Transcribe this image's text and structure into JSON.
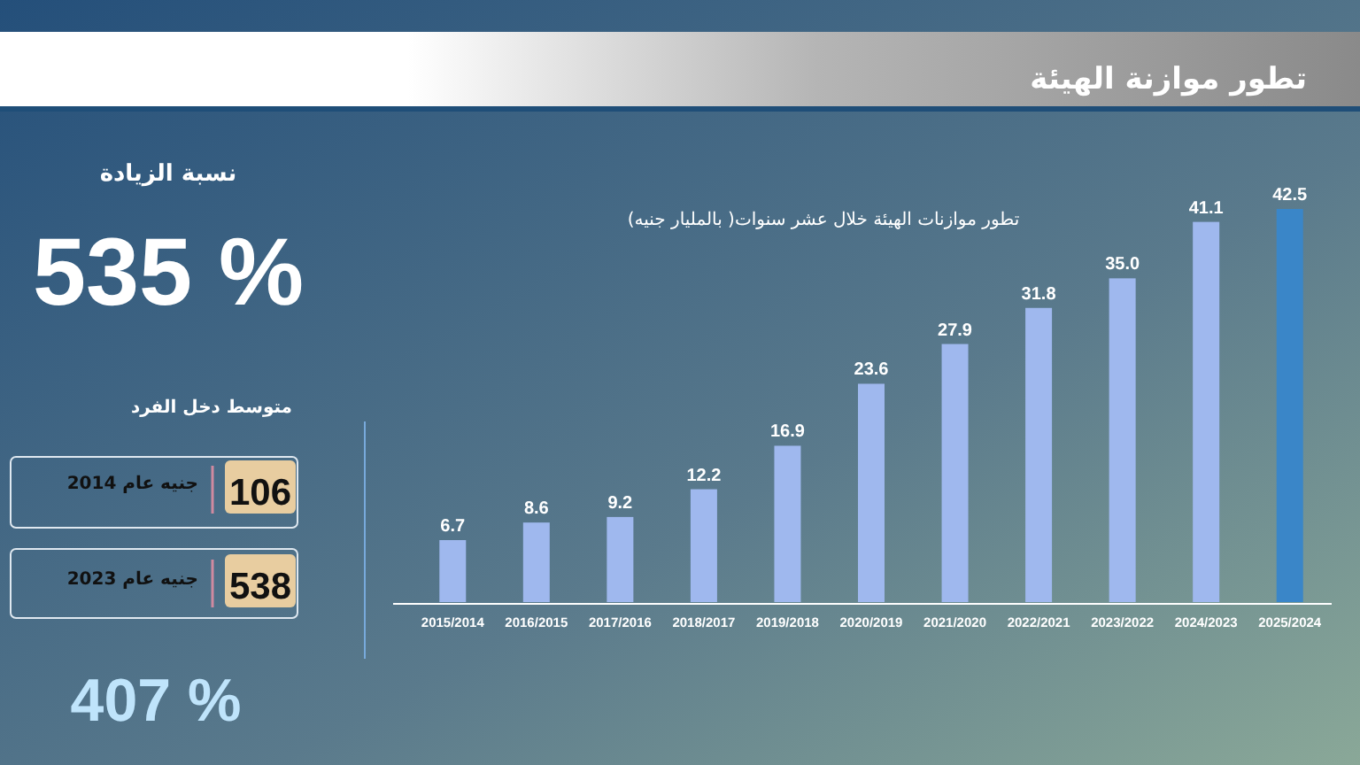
{
  "chart_data": {
    "type": "bar",
    "title": "تطور موازنة الهيئة",
    "subtitle": "تطور موازنات الهيئة خلال عشر سنوات( بالمليار جنيه)",
    "categories": [
      "2015/2014",
      "2016/2015",
      "2017/2016",
      "2018/2017",
      "2019/2018",
      "2020/2019",
      "2021/2020",
      "2022/2021",
      "2023/2022",
      "2024/2023",
      "2025/2024"
    ],
    "values": [
      6.7,
      8.6,
      9.2,
      12.2,
      16.9,
      23.6,
      27.9,
      31.8,
      35.0,
      41.1,
      42.5
    ],
    "value_labels": [
      "6.7",
      "8.6",
      "9.2",
      "12.2",
      "16.9",
      "23.6",
      "27.9",
      "31.8",
      "35.0",
      "41.1",
      "42.5"
    ],
    "colors": [
      "#9fb8ee",
      "#9fb8ee",
      "#9fb8ee",
      "#9fb8ee",
      "#9fb8ee",
      "#9fb8ee",
      "#9fb8ee",
      "#9fb8ee",
      "#9fb8ee",
      "#9fb8ee",
      "#3a86c8"
    ],
    "annotations": [
      "نسبة الزيادة",
      "535 %",
      "متوسط دخل الفرد",
      "106",
      "جنيه عام 2014",
      "538",
      "جنيه عام 2023",
      "407 %"
    ]
  }
}
